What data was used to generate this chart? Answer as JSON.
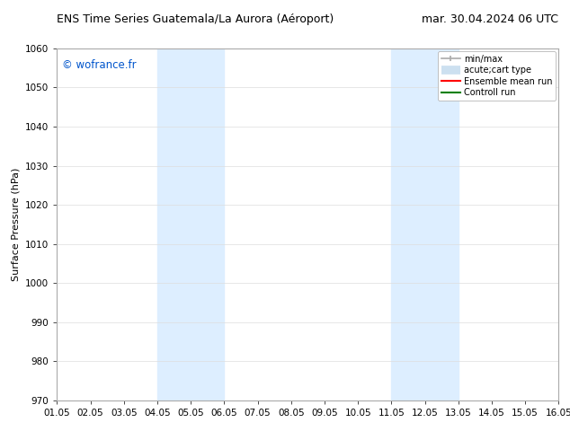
{
  "title_left": "ENS Time Series Guatemala/La Aurora (Aéroport)",
  "title_right": "mar. 30.04.2024 06 UTC",
  "ylabel": "Surface Pressure (hPa)",
  "ylim": [
    970,
    1060
  ],
  "yticks": [
    970,
    980,
    990,
    1000,
    1010,
    1020,
    1030,
    1040,
    1050,
    1060
  ],
  "xlim": [
    0,
    15
  ],
  "xtick_labels": [
    "01.05",
    "02.05",
    "03.05",
    "04.05",
    "05.05",
    "06.05",
    "07.05",
    "08.05",
    "09.05",
    "10.05",
    "11.05",
    "12.05",
    "13.05",
    "14.05",
    "15.05",
    "16.05"
  ],
  "xtick_positions": [
    0,
    1,
    2,
    3,
    4,
    5,
    6,
    7,
    8,
    9,
    10,
    11,
    12,
    13,
    14,
    15
  ],
  "shaded_bands": [
    {
      "x_start": 3,
      "x_end": 5,
      "color": "#ddeeff"
    },
    {
      "x_start": 10,
      "x_end": 12,
      "color": "#ddeeff"
    }
  ],
  "bg_color": "#ffffff",
  "plot_bg_color": "#ffffff",
  "watermark": "© wofrance.fr",
  "watermark_color": "#0055cc",
  "legend_entries": [
    {
      "label": "min/max",
      "color": "#aaaaaa",
      "lw": 1.5
    },
    {
      "label": "acute;cart type",
      "color": "#cce0f0",
      "lw": 7
    },
    {
      "label": "Ensemble mean run",
      "color": "red",
      "lw": 1.5
    },
    {
      "label": "Controll run",
      "color": "green",
      "lw": 1.5
    }
  ],
  "grid_color": "#dddddd",
  "spine_color": "#aaaaaa",
  "title_fontsize": 9,
  "ylabel_fontsize": 8,
  "tick_fontsize": 7.5,
  "watermark_fontsize": 8.5,
  "legend_fontsize": 7
}
